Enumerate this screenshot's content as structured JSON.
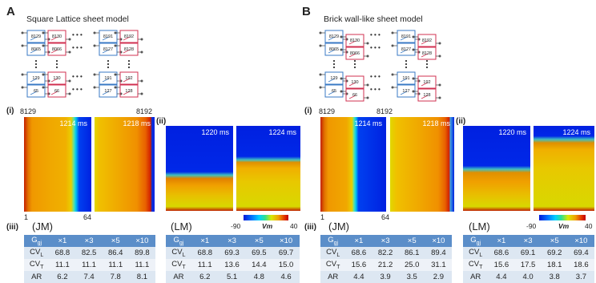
{
  "panelA": {
    "letter": "A",
    "title": "Square Lattice sheet model",
    "cells": [
      "8129",
      "8130",
      "8191",
      "8192",
      "8065",
      "8066",
      "8127",
      "8128",
      "129",
      "130",
      "191",
      "192",
      "65",
      "66",
      "127",
      "128",
      "cell 1",
      "2",
      "63",
      "64"
    ]
  },
  "panelB": {
    "letter": "B",
    "title": "Brick wall-like sheet model",
    "cells": [
      "8129",
      "8130",
      "8191",
      "8192",
      "8065",
      "8066",
      "8127",
      "8128",
      "129",
      "130",
      "191",
      "192",
      "65",
      "66",
      "127",
      "128",
      "cell 1",
      "2",
      "63",
      "64"
    ]
  },
  "sublabels": {
    "i": "(i)",
    "ii": "(ii)",
    "iii": "(iii)"
  },
  "corners": {
    "top_left": "8129",
    "top_right": "8192",
    "bottom_left": "1",
    "bottom_right": "64"
  },
  "times": [
    "1214 ms",
    "1218 ms",
    "1220 ms",
    "1224 ms"
  ],
  "colorbar": {
    "min": "-90",
    "max": "40",
    "label": "Vm",
    "colors": [
      "#0018d8",
      "#00d0ff",
      "#d8e800",
      "#c00000"
    ]
  },
  "tables": [
    {
      "label": "(JM)",
      "header": [
        "Ggj",
        "×1",
        "×3",
        "×5",
        "×10"
      ],
      "rows": [
        {
          "name": "CVL",
          "sub": "L",
          "values": [
            "68.8",
            "82.5",
            "86.4",
            "89.8"
          ]
        },
        {
          "name": "CVT",
          "sub": "T",
          "values": [
            "11.1",
            "11.1",
            "11.1",
            "11.1"
          ]
        },
        {
          "name": "AR",
          "sub": "",
          "values": [
            "6.2",
            "7.4",
            "7.8",
            "8.1"
          ]
        }
      ]
    },
    {
      "label": "(LM)",
      "header": [
        "Ggj",
        "×1",
        "×3",
        "×5",
        "×10"
      ],
      "rows": [
        {
          "name": "CVL",
          "sub": "L",
          "values": [
            "68.8",
            "69.3",
            "69.5",
            "69.7"
          ]
        },
        {
          "name": "CVT",
          "sub": "T",
          "values": [
            "11.1",
            "13.6",
            "14.4",
            "15.0"
          ]
        },
        {
          "name": "AR",
          "sub": "",
          "values": [
            "6.2",
            "5.1",
            "4.8",
            "4.6"
          ]
        }
      ]
    },
    {
      "label": "(JM)",
      "header": [
        "Ggj",
        "×1",
        "×3",
        "×5",
        "×10"
      ],
      "rows": [
        {
          "name": "CVL",
          "sub": "L",
          "values": [
            "68.6",
            "82.2",
            "86.1",
            "89.4"
          ]
        },
        {
          "name": "CVT",
          "sub": "T",
          "values": [
            "15.6",
            "21.2",
            "25.0",
            "31.1"
          ]
        },
        {
          "name": "AR",
          "sub": "",
          "values": [
            "4.4",
            "3.9",
            "3.5",
            "2.9"
          ]
        }
      ]
    },
    {
      "label": "(LM)",
      "header": [
        "Ggj",
        "×1",
        "×3",
        "×5",
        "×10"
      ],
      "rows": [
        {
          "name": "CVL",
          "sub": "L",
          "values": [
            "68.6",
            "69.1",
            "69.2",
            "69.4"
          ]
        },
        {
          "name": "CVT",
          "sub": "T",
          "values": [
            "15.6",
            "17.5",
            "18.1",
            "18.6"
          ]
        },
        {
          "name": "AR",
          "sub": "",
          "values": [
            "4.4",
            "4.0",
            "3.8",
            "3.7"
          ]
        }
      ]
    }
  ]
}
